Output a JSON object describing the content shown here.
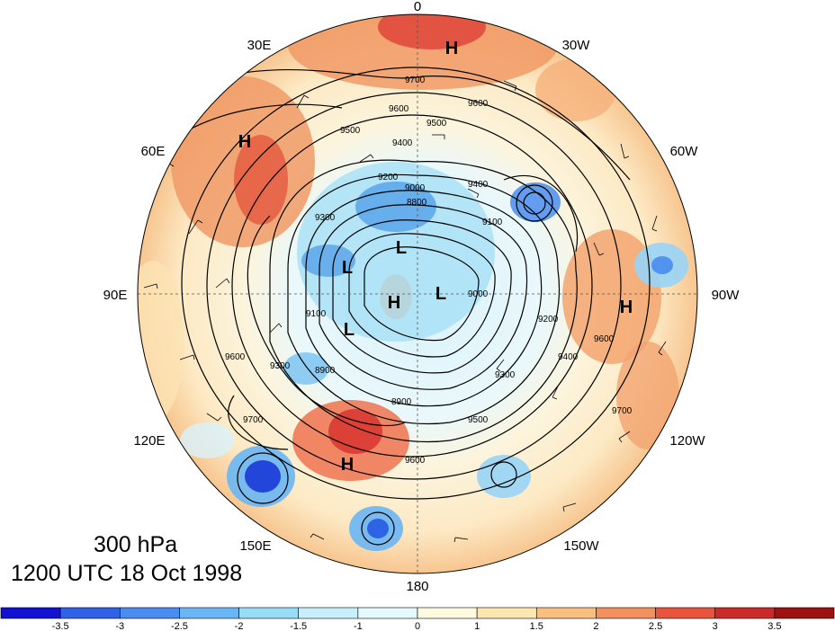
{
  "map": {
    "longitude_labels": [
      "0",
      "30W",
      "60W",
      "90W",
      "120W",
      "150W",
      "180",
      "150E",
      "120E",
      "90E",
      "60E",
      "30E"
    ],
    "contour_labels": [
      "9700",
      "9600",
      "9500",
      "9600",
      "9500",
      "9400",
      "9300",
      "9200",
      "9100",
      "9000",
      "8900",
      "8800",
      "9400",
      "9300",
      "9200",
      "9100",
      "9000",
      "8900",
      "9300",
      "9600",
      "9700",
      "9600",
      "9700",
      "9400",
      "9600",
      "9500"
    ],
    "high_low_marks": [
      {
        "text": "H",
        "lon": "0"
      },
      {
        "text": "H",
        "lon": "60E"
      },
      {
        "text": "H",
        "lon": "90W"
      },
      {
        "text": "H",
        "lon": "150E"
      },
      {
        "text": "H",
        "lon": "interior"
      },
      {
        "text": "L",
        "lon": "interior"
      },
      {
        "text": "L",
        "lon": "interior"
      },
      {
        "text": "L",
        "lon": "interior"
      },
      {
        "text": "L",
        "lon": "interior"
      }
    ]
  },
  "caption": {
    "level": "300 hPa",
    "time": "1200 UTC 18 Oct 1998"
  },
  "colorbar": {
    "ticks": [
      "-3.5",
      "-3",
      "-2.5",
      "-2",
      "-1.5",
      "-1",
      "0",
      "1",
      "1.5",
      "2",
      "2.5",
      "3",
      "3.5"
    ],
    "colors": [
      "#1212d2",
      "#2f62e6",
      "#4a8cf0",
      "#6ab6f4",
      "#98dcf8",
      "#c8f0fc",
      "#e4fafe",
      "#fefae0",
      "#fce6b0",
      "#f9bf80",
      "#f39060",
      "#e8543c",
      "#cc2a2a",
      "#9e1212"
    ]
  }
}
